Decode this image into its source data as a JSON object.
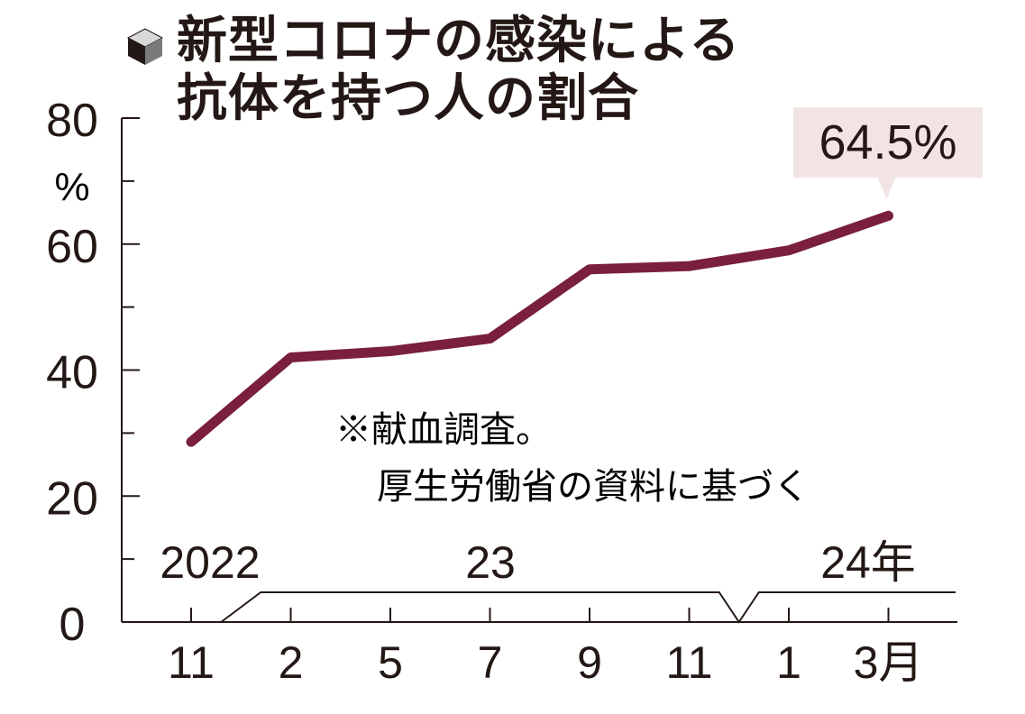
{
  "title": {
    "line1": "新型コロナの感染による",
    "line2": "抗体を持つ人の割合",
    "icon": "cube-icon"
  },
  "annotation": {
    "line1": "※献血調査。",
    "line2": "厚生労働省の資料に基づく"
  },
  "colors": {
    "line": "#7a1f3d",
    "callout_bg": "#f3e4e4",
    "text": "#231815"
  },
  "chart_data": {
    "type": "line",
    "title": "新型コロナの感染による抗体を持つ人の割合",
    "ylabel": "%",
    "ylim": [
      0,
      80
    ],
    "yticks": [
      "0",
      "20",
      "40",
      "60",
      "80"
    ],
    "x_month_labels": [
      "11",
      "2",
      "5",
      "7",
      "9",
      "11",
      "1",
      "3月"
    ],
    "year_labels": [
      "2022",
      "23",
      "24年"
    ],
    "x": [
      "2022-11",
      "2023-02",
      "2023-05",
      "2023-07",
      "2023-09",
      "2023-11",
      "2024-01",
      "2024-03"
    ],
    "series": [
      {
        "values": [
          28.6,
          42.0,
          43.0,
          45.0,
          56.0,
          56.5,
          59.0,
          64.5
        ]
      }
    ],
    "last_value_label": "64.5%",
    "grid": false
  }
}
